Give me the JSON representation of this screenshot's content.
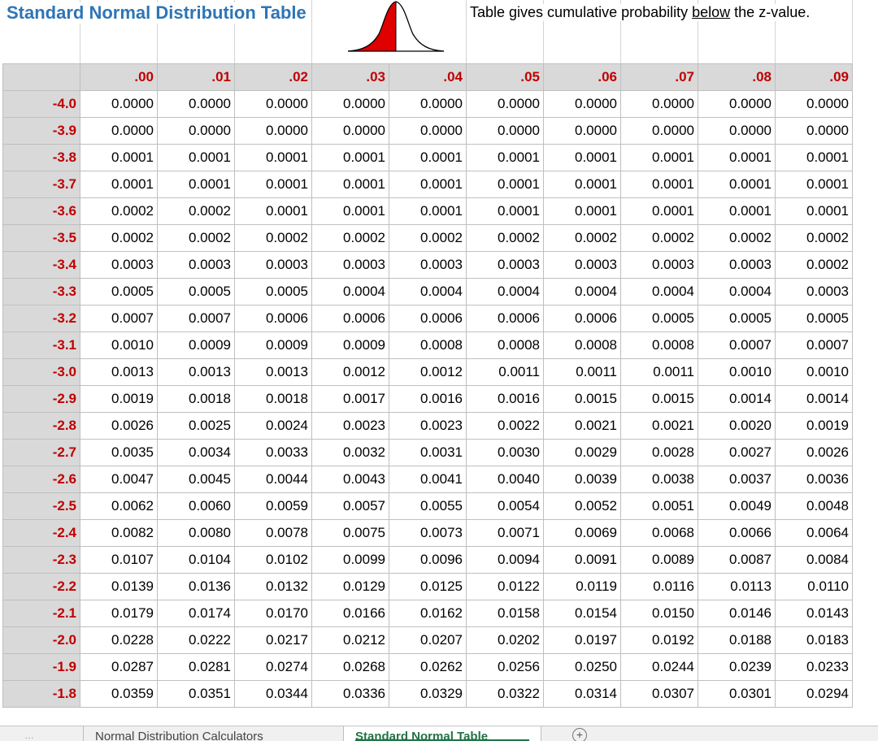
{
  "title": "Standard Normal Distribution Table",
  "description": {
    "before": "Table gives cumulative probability ",
    "underlined": "below",
    "after": " the z-value."
  },
  "colors": {
    "title": "#2e75b6",
    "header_text": "#c00000",
    "header_fill": "#d9d9d9",
    "curve_fill": "#e00000",
    "tab_active": "#217346"
  },
  "icons": {
    "curve": "bell-curve-icon",
    "add_sheet": "plus-circle-icon"
  },
  "table": {
    "columns": [
      ".00",
      ".01",
      ".02",
      ".03",
      ".04",
      ".05",
      ".06",
      ".07",
      ".08",
      ".09"
    ],
    "rows": [
      {
        "z": "-4.0",
        "values": [
          "0.0000",
          "0.0000",
          "0.0000",
          "0.0000",
          "0.0000",
          "0.0000",
          "0.0000",
          "0.0000",
          "0.0000",
          "0.0000"
        ]
      },
      {
        "z": "-3.9",
        "values": [
          "0.0000",
          "0.0000",
          "0.0000",
          "0.0000",
          "0.0000",
          "0.0000",
          "0.0000",
          "0.0000",
          "0.0000",
          "0.0000"
        ]
      },
      {
        "z": "-3.8",
        "values": [
          "0.0001",
          "0.0001",
          "0.0001",
          "0.0001",
          "0.0001",
          "0.0001",
          "0.0001",
          "0.0001",
          "0.0001",
          "0.0001"
        ]
      },
      {
        "z": "-3.7",
        "values": [
          "0.0001",
          "0.0001",
          "0.0001",
          "0.0001",
          "0.0001",
          "0.0001",
          "0.0001",
          "0.0001",
          "0.0001",
          "0.0001"
        ]
      },
      {
        "z": "-3.6",
        "values": [
          "0.0002",
          "0.0002",
          "0.0001",
          "0.0001",
          "0.0001",
          "0.0001",
          "0.0001",
          "0.0001",
          "0.0001",
          "0.0001"
        ]
      },
      {
        "z": "-3.5",
        "values": [
          "0.0002",
          "0.0002",
          "0.0002",
          "0.0002",
          "0.0002",
          "0.0002",
          "0.0002",
          "0.0002",
          "0.0002",
          "0.0002"
        ]
      },
      {
        "z": "-3.4",
        "values": [
          "0.0003",
          "0.0003",
          "0.0003",
          "0.0003",
          "0.0003",
          "0.0003",
          "0.0003",
          "0.0003",
          "0.0003",
          "0.0002"
        ]
      },
      {
        "z": "-3.3",
        "values": [
          "0.0005",
          "0.0005",
          "0.0005",
          "0.0004",
          "0.0004",
          "0.0004",
          "0.0004",
          "0.0004",
          "0.0004",
          "0.0003"
        ]
      },
      {
        "z": "-3.2",
        "values": [
          "0.0007",
          "0.0007",
          "0.0006",
          "0.0006",
          "0.0006",
          "0.0006",
          "0.0006",
          "0.0005",
          "0.0005",
          "0.0005"
        ]
      },
      {
        "z": "-3.1",
        "values": [
          "0.0010",
          "0.0009",
          "0.0009",
          "0.0009",
          "0.0008",
          "0.0008",
          "0.0008",
          "0.0008",
          "0.0007",
          "0.0007"
        ]
      },
      {
        "z": "-3.0",
        "values": [
          "0.0013",
          "0.0013",
          "0.0013",
          "0.0012",
          "0.0012",
          "0.0011",
          "0.0011",
          "0.0011",
          "0.0010",
          "0.0010"
        ]
      },
      {
        "z": "-2.9",
        "values": [
          "0.0019",
          "0.0018",
          "0.0018",
          "0.0017",
          "0.0016",
          "0.0016",
          "0.0015",
          "0.0015",
          "0.0014",
          "0.0014"
        ]
      },
      {
        "z": "-2.8",
        "values": [
          "0.0026",
          "0.0025",
          "0.0024",
          "0.0023",
          "0.0023",
          "0.0022",
          "0.0021",
          "0.0021",
          "0.0020",
          "0.0019"
        ]
      },
      {
        "z": "-2.7",
        "values": [
          "0.0035",
          "0.0034",
          "0.0033",
          "0.0032",
          "0.0031",
          "0.0030",
          "0.0029",
          "0.0028",
          "0.0027",
          "0.0026"
        ]
      },
      {
        "z": "-2.6",
        "values": [
          "0.0047",
          "0.0045",
          "0.0044",
          "0.0043",
          "0.0041",
          "0.0040",
          "0.0039",
          "0.0038",
          "0.0037",
          "0.0036"
        ]
      },
      {
        "z": "-2.5",
        "values": [
          "0.0062",
          "0.0060",
          "0.0059",
          "0.0057",
          "0.0055",
          "0.0054",
          "0.0052",
          "0.0051",
          "0.0049",
          "0.0048"
        ]
      },
      {
        "z": "-2.4",
        "values": [
          "0.0082",
          "0.0080",
          "0.0078",
          "0.0075",
          "0.0073",
          "0.0071",
          "0.0069",
          "0.0068",
          "0.0066",
          "0.0064"
        ]
      },
      {
        "z": "-2.3",
        "values": [
          "0.0107",
          "0.0104",
          "0.0102",
          "0.0099",
          "0.0096",
          "0.0094",
          "0.0091",
          "0.0089",
          "0.0087",
          "0.0084"
        ]
      },
      {
        "z": "-2.2",
        "values": [
          "0.0139",
          "0.0136",
          "0.0132",
          "0.0129",
          "0.0125",
          "0.0122",
          "0.0119",
          "0.0116",
          "0.0113",
          "0.0110"
        ]
      },
      {
        "z": "-2.1",
        "values": [
          "0.0179",
          "0.0174",
          "0.0170",
          "0.0166",
          "0.0162",
          "0.0158",
          "0.0154",
          "0.0150",
          "0.0146",
          "0.0143"
        ]
      },
      {
        "z": "-2.0",
        "values": [
          "0.0228",
          "0.0222",
          "0.0217",
          "0.0212",
          "0.0207",
          "0.0202",
          "0.0197",
          "0.0192",
          "0.0188",
          "0.0183"
        ]
      },
      {
        "z": "-1.9",
        "values": [
          "0.0287",
          "0.0281",
          "0.0274",
          "0.0268",
          "0.0262",
          "0.0256",
          "0.0250",
          "0.0244",
          "0.0239",
          "0.0233"
        ]
      },
      {
        "z": "-1.8",
        "values": [
          "0.0359",
          "0.0351",
          "0.0344",
          "0.0336",
          "0.0329",
          "0.0322",
          "0.0314",
          "0.0307",
          "0.0301",
          "0.0294"
        ]
      }
    ]
  },
  "sheet_tabs": [
    {
      "label": "Normal Distribution Calculators",
      "active": false
    },
    {
      "label": "Standard Normal Table",
      "active": true
    }
  ]
}
